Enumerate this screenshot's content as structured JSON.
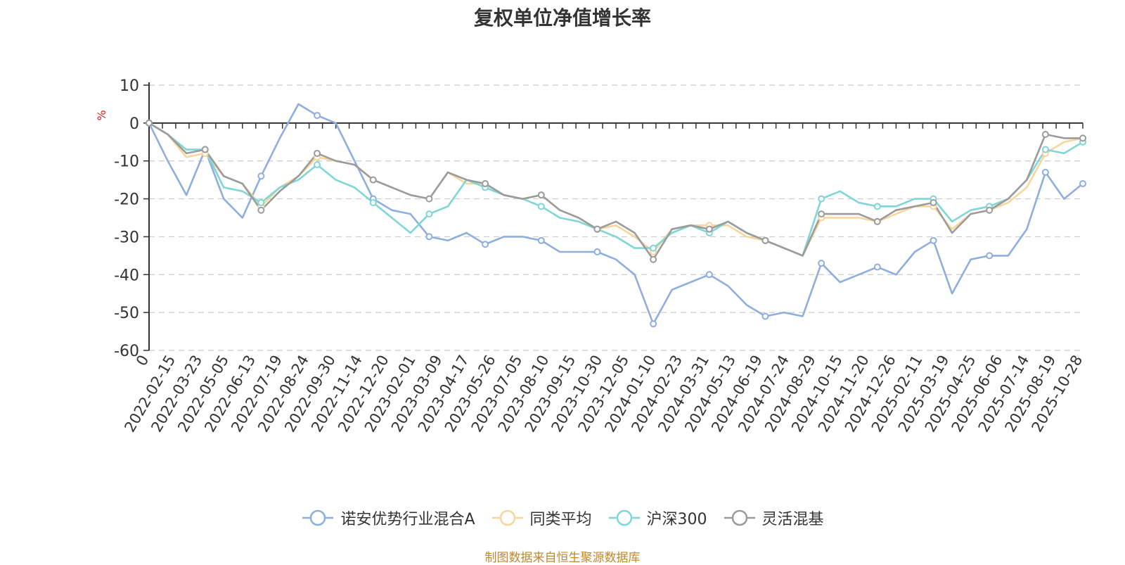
{
  "chart_data": {
    "type": "line",
    "title": "复权单位净值增长率",
    "ylabel": "%",
    "xlabel": "",
    "ylim": [
      -60,
      10
    ],
    "yticks": [
      10,
      0,
      -10,
      -20,
      -30,
      -40,
      -50,
      -60
    ],
    "grid": true,
    "legend_position": "bottom",
    "x_ticks": [
      "0",
      "2022-02-15",
      "2022-03-23",
      "2022-05-05",
      "2022-06-13",
      "2022-07-19",
      "2022-08-24",
      "2022-09-30",
      "2022-11-14",
      "2022-12-20",
      "2023-02-01",
      "2023-03-09",
      "2023-04-17",
      "2023-05-26",
      "2023-07-05",
      "2023-08-10",
      "2023-09-15",
      "2023-10-30",
      "2023-12-05",
      "2024-01-10",
      "2024-02-23",
      "2024-03-31",
      "2024-05-13",
      "2024-06-19",
      "2024-07-24",
      "2024-08-29",
      "2024-10-15",
      "2024-11-20",
      "2024-12-26",
      "2025-02-11",
      "2025-03-19",
      "2025-04-25",
      "2025-06-06",
      "2025-07-14",
      "2025-08-19",
      "2025-10-28"
    ],
    "series": [
      {
        "name": "诺安优势行业混合A",
        "color": "#8eaee0",
        "values": [
          0,
          -10,
          -19,
          -7,
          -20,
          -25,
          -14,
          -4,
          5,
          2,
          0,
          -10,
          -20,
          -23,
          -24,
          -30,
          -31,
          -29,
          -32,
          -30,
          -30,
          -31,
          -34,
          -34,
          -34,
          -36,
          -40,
          -53,
          -44,
          -42,
          -40,
          -43,
          -48,
          -51,
          -50,
          -51,
          -37,
          -42,
          -40,
          -38,
          -40,
          -34,
          -31,
          -45,
          -36,
          -35,
          -35,
          -28,
          -13,
          -20,
          -16
        ]
      },
      {
        "name": "同类平均",
        "color": "#f8d59a",
        "values": [
          0,
          -3,
          -9,
          -8,
          -14,
          -16,
          -22,
          -17,
          -14,
          -9,
          -10,
          -11,
          -15,
          -17,
          -19,
          -20,
          -13,
          -16,
          -16,
          -19,
          -20,
          -19,
          -23,
          -25,
          -28,
          -27,
          -30,
          -34,
          -28,
          -27,
          -27,
          -27,
          -30,
          -31,
          -33,
          -35,
          -25,
          -25,
          -25,
          -26,
          -24,
          -22,
          -22,
          -28,
          -24,
          -23,
          -21,
          -17,
          -8,
          -5,
          -4
        ]
      },
      {
        "name": "沪深300",
        "color": "#7fd6d6",
        "values": [
          0,
          -3,
          -7,
          -7,
          -17,
          -18,
          -21,
          -17,
          -15,
          -11,
          -15,
          -17,
          -21,
          -25,
          -29,
          -24,
          -22,
          -15,
          -17,
          -19,
          -20,
          -22,
          -25,
          -26,
          -28,
          -30,
          -33,
          -33,
          -29,
          -27,
          -29,
          -26,
          -29,
          -31,
          -33,
          -35,
          -20,
          -18,
          -21,
          -22,
          -22,
          -20,
          -20,
          -26,
          -23,
          -22,
          -20,
          -15,
          -7,
          -8,
          -5
        ]
      },
      {
        "name": "灵活混基",
        "color": "#9b9b9b",
        "values": [
          0,
          -3,
          -8,
          -7,
          -14,
          -16,
          -23,
          -18,
          -14,
          -8,
          -10,
          -11,
          -15,
          -17,
          -19,
          -20,
          -13,
          -15,
          -16,
          -19,
          -20,
          -19,
          -23,
          -25,
          -28,
          -26,
          -29,
          -36,
          -28,
          -27,
          -28,
          -26,
          -29,
          -31,
          -33,
          -35,
          -24,
          -24,
          -24,
          -26,
          -23,
          -22,
          -21,
          -29,
          -24,
          -23,
          -20,
          -15,
          -3,
          -4,
          -4
        ]
      }
    ]
  },
  "source_note": "制图数据来自恒生聚源数据库"
}
